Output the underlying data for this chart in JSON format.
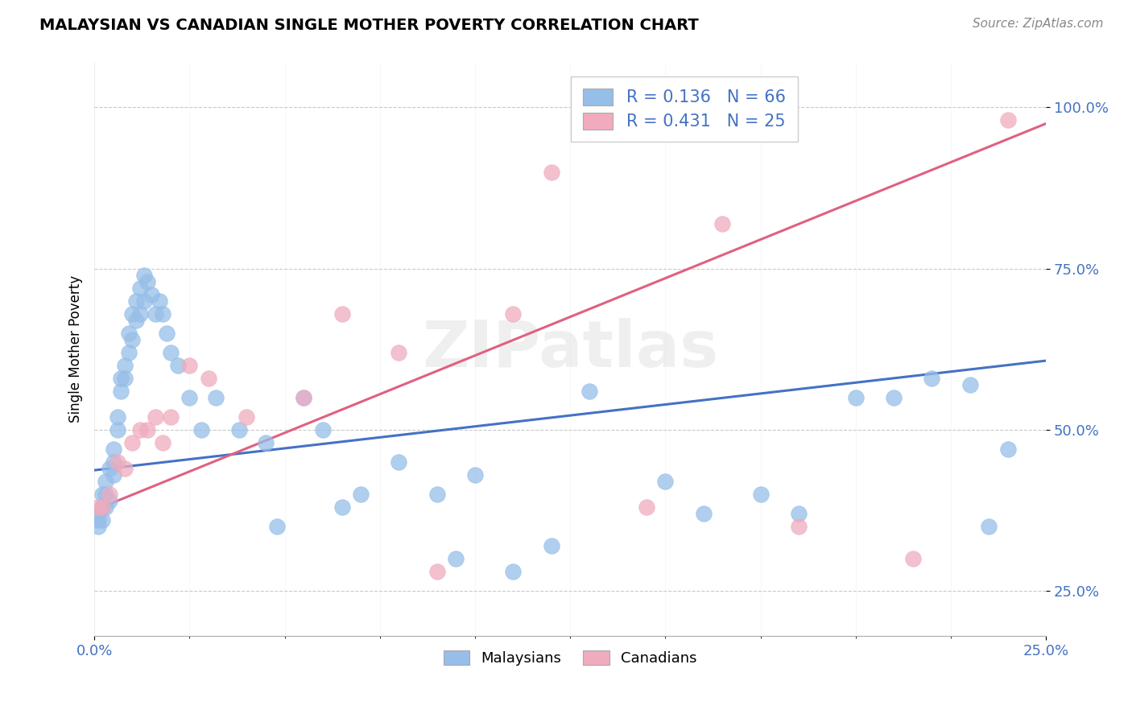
{
  "title": "MALAYSIAN VS CANADIAN SINGLE MOTHER POVERTY CORRELATION CHART",
  "source": "Source: ZipAtlas.com",
  "ylabel": "Single Mother Poverty",
  "xlim": [
    0.0,
    0.25
  ],
  "ylim": [
    0.18,
    1.07
  ],
  "ytick_positions": [
    0.25,
    0.5,
    0.75,
    1.0
  ],
  "ytick_labels": [
    "25.0%",
    "50.0%",
    "75.0%",
    "100.0%"
  ],
  "malaysian_R": 0.136,
  "malaysian_N": 66,
  "canadian_R": 0.431,
  "canadian_N": 25,
  "blue_color": "#96BEE8",
  "pink_color": "#F0ABBE",
  "blue_line_color": "#4472C4",
  "pink_line_color": "#E06080",
  "legend_label_blue": "Malaysians",
  "legend_label_pink": "Canadians",
  "watermark": "ZIPatlas",
  "blue_line_y0": 0.437,
  "blue_line_y1": 0.607,
  "pink_line_y0": 0.375,
  "pink_line_y1": 0.975,
  "malaysian_x": [
    0.001,
    0.001,
    0.001,
    0.002,
    0.002,
    0.002,
    0.002,
    0.003,
    0.003,
    0.003,
    0.004,
    0.004,
    0.005,
    0.005,
    0.005,
    0.006,
    0.006,
    0.007,
    0.007,
    0.008,
    0.008,
    0.009,
    0.009,
    0.01,
    0.01,
    0.011,
    0.011,
    0.012,
    0.012,
    0.013,
    0.013,
    0.014,
    0.015,
    0.016,
    0.017,
    0.018,
    0.019,
    0.02,
    0.022,
    0.025,
    0.028,
    0.032,
    0.038,
    0.045,
    0.048,
    0.055,
    0.06,
    0.065,
    0.07,
    0.08,
    0.09,
    0.095,
    0.1,
    0.11,
    0.12,
    0.13,
    0.15,
    0.16,
    0.175,
    0.185,
    0.2,
    0.21,
    0.22,
    0.23,
    0.235,
    0.24
  ],
  "malaysian_y": [
    0.35,
    0.37,
    0.36,
    0.38,
    0.36,
    0.38,
    0.4,
    0.38,
    0.4,
    0.42,
    0.44,
    0.39,
    0.43,
    0.45,
    0.47,
    0.5,
    0.52,
    0.56,
    0.58,
    0.58,
    0.6,
    0.62,
    0.65,
    0.64,
    0.68,
    0.67,
    0.7,
    0.72,
    0.68,
    0.7,
    0.74,
    0.73,
    0.71,
    0.68,
    0.7,
    0.68,
    0.65,
    0.62,
    0.6,
    0.55,
    0.5,
    0.55,
    0.5,
    0.48,
    0.35,
    0.55,
    0.5,
    0.38,
    0.4,
    0.45,
    0.4,
    0.3,
    0.43,
    0.28,
    0.32,
    0.56,
    0.42,
    0.37,
    0.4,
    0.37,
    0.55,
    0.55,
    0.58,
    0.57,
    0.35,
    0.47
  ],
  "canadian_x": [
    0.001,
    0.002,
    0.004,
    0.006,
    0.008,
    0.01,
    0.012,
    0.014,
    0.016,
    0.018,
    0.02,
    0.025,
    0.03,
    0.04,
    0.055,
    0.065,
    0.08,
    0.09,
    0.11,
    0.12,
    0.145,
    0.165,
    0.185,
    0.215,
    0.24
  ],
  "canadian_y": [
    0.38,
    0.38,
    0.4,
    0.45,
    0.44,
    0.48,
    0.5,
    0.5,
    0.52,
    0.48,
    0.52,
    0.6,
    0.58,
    0.52,
    0.55,
    0.68,
    0.62,
    0.28,
    0.68,
    0.9,
    0.38,
    0.82,
    0.35,
    0.3,
    0.98
  ]
}
